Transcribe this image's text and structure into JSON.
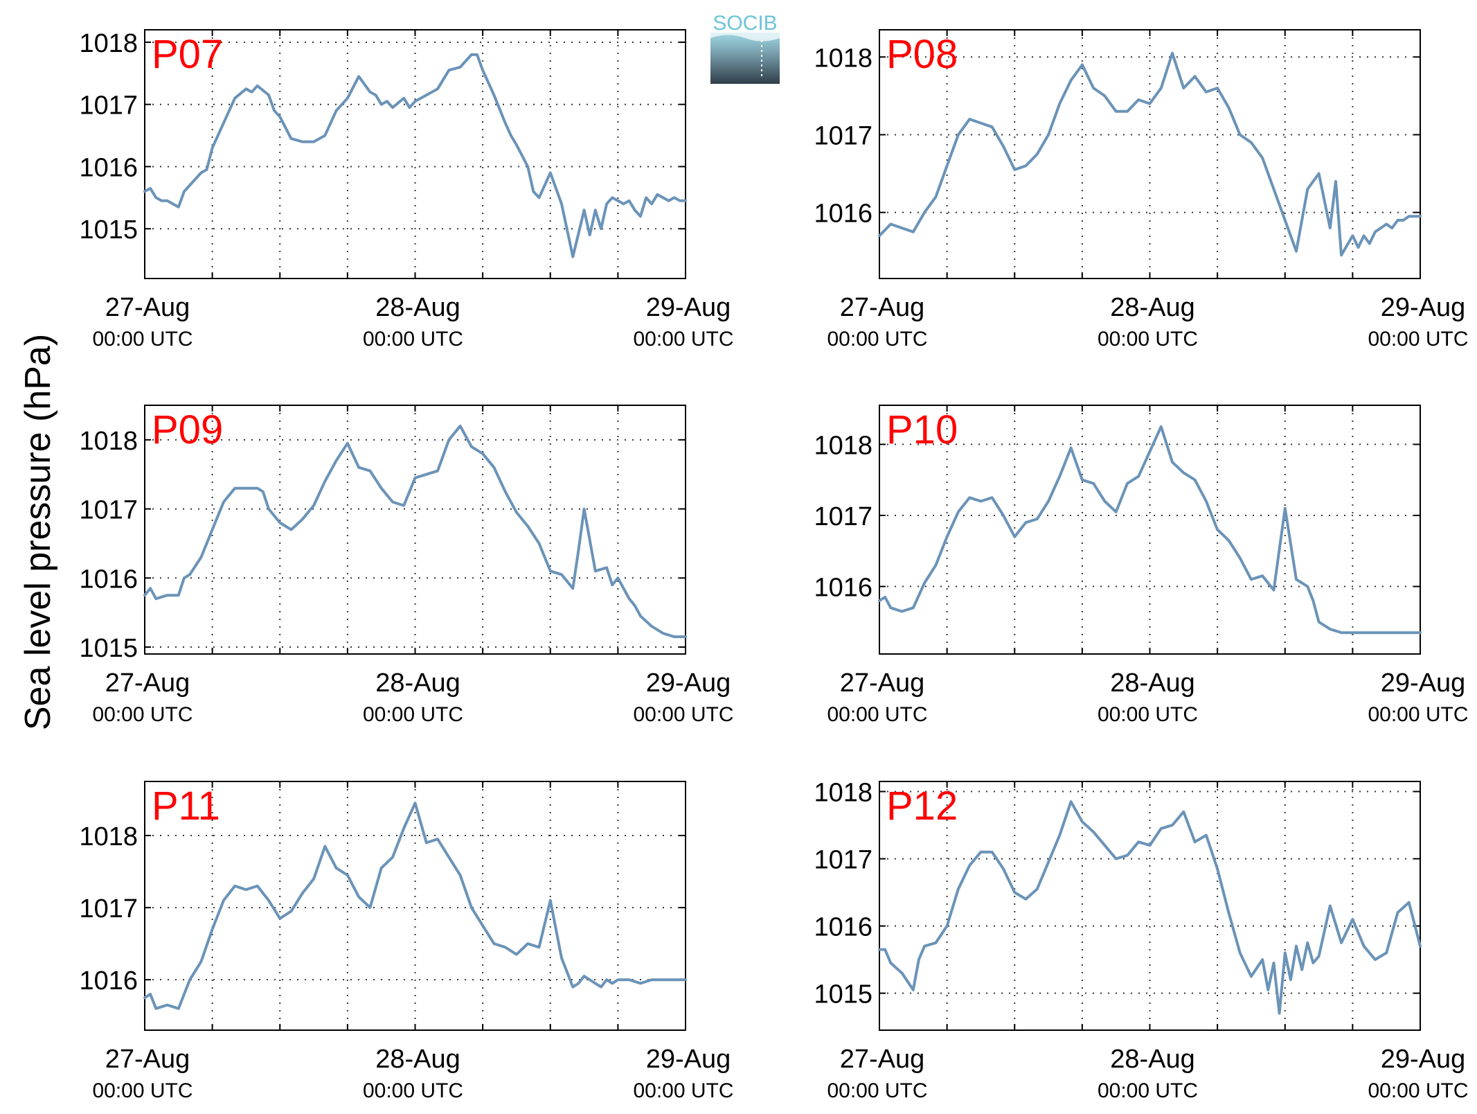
{
  "figure": {
    "ylabel": "Sea level pressure (hPa)",
    "logo_text": "SOCIB",
    "line_color": "#6b93b8",
    "station_label_color": "#ff0000",
    "axis_color": "#000000"
  },
  "chart_data": [
    {
      "type": "line",
      "station": "P07",
      "x_labels": [
        [
          "27-Aug",
          "00:00 UTC"
        ],
        [
          "28-Aug",
          "00:00 UTC"
        ],
        [
          "29-Aug",
          "00:00 UTC"
        ]
      ],
      "xlim": [
        0,
        48
      ],
      "ylim": [
        1014.2,
        1018.2
      ],
      "yticks": [
        1015,
        1016,
        1017,
        1018
      ],
      "grid": true,
      "series": [
        {
          "x": [
            0,
            0.5,
            1,
            1.5,
            2,
            3,
            3.5,
            4,
            5,
            5.5,
            6,
            7,
            8,
            9,
            9.5,
            10,
            11,
            11.5,
            12,
            13,
            14,
            15,
            15.5,
            16,
            17,
            18,
            19,
            20,
            20.5,
            21,
            21.5,
            22,
            23,
            23.5,
            24,
            25,
            26,
            27,
            28,
            29,
            29.5,
            30,
            31,
            32,
            32.5,
            33,
            34,
            34.5,
            35,
            36,
            37,
            38,
            39,
            39.5,
            40,
            40.5,
            41,
            41.5,
            42,
            42.5,
            43,
            43.5,
            44,
            44.5,
            45,
            45.5,
            46,
            46.5,
            47,
            47.5,
            48
          ],
          "values": [
            1015.6,
            1015.65,
            1015.5,
            1015.45,
            1015.45,
            1015.35,
            1015.6,
            1015.7,
            1015.9,
            1015.95,
            1016.3,
            1016.7,
            1017.1,
            1017.25,
            1017.2,
            1017.3,
            1017.15,
            1016.9,
            1016.8,
            1016.45,
            1016.4,
            1016.4,
            1016.45,
            1016.5,
            1016.9,
            1017.1,
            1017.45,
            1017.2,
            1017.15,
            1017.0,
            1017.05,
            1016.95,
            1017.1,
            1016.95,
            1017.05,
            1017.15,
            1017.25,
            1017.55,
            1017.6,
            1017.8,
            1017.8,
            1017.55,
            1017.15,
            1016.7,
            1016.5,
            1016.35,
            1016.0,
            1015.6,
            1015.5,
            1015.9,
            1015.4,
            1014.55,
            1015.3,
            1014.9,
            1015.3,
            1015.0,
            1015.4,
            1015.5,
            1015.45,
            1015.4,
            1015.45,
            1015.3,
            1015.2,
            1015.5,
            1015.4,
            1015.55,
            1015.5,
            1015.45,
            1015.5,
            1015.45,
            1015.45
          ]
        }
      ]
    },
    {
      "type": "line",
      "station": "P08",
      "x_labels": [
        [
          "27-Aug",
          "00:00 UTC"
        ],
        [
          "28-Aug",
          "00:00 UTC"
        ],
        [
          "29-Aug",
          "00:00 UTC"
        ]
      ],
      "xlim": [
        0,
        48
      ],
      "ylim": [
        1015.15,
        1018.35
      ],
      "yticks": [
        1016,
        1017,
        1018
      ],
      "grid": true,
      "series": [
        {
          "x": [
            0,
            1,
            2,
            3,
            4,
            5,
            6,
            7,
            8,
            9,
            10,
            11,
            12,
            13,
            14,
            15,
            16,
            17,
            18,
            19,
            20,
            21,
            22,
            23,
            24,
            25,
            26,
            27,
            28,
            29,
            30,
            31,
            32,
            33,
            34,
            35,
            36,
            37,
            38,
            39,
            40,
            40.5,
            41,
            42,
            42.5,
            43,
            43.5,
            44,
            44.5,
            45,
            45.5,
            46,
            46.5,
            47,
            48
          ],
          "values": [
            1015.7,
            1015.85,
            1015.8,
            1015.75,
            1016.0,
            1016.2,
            1016.6,
            1017.0,
            1017.2,
            1017.15,
            1017.1,
            1016.85,
            1016.55,
            1016.6,
            1016.75,
            1017.0,
            1017.4,
            1017.7,
            1017.9,
            1017.6,
            1017.5,
            1017.3,
            1017.3,
            1017.45,
            1017.4,
            1017.6,
            1018.05,
            1017.6,
            1017.75,
            1017.55,
            1017.6,
            1017.35,
            1017.0,
            1016.9,
            1016.7,
            1016.3,
            1015.9,
            1015.5,
            1016.3,
            1016.5,
            1015.8,
            1016.4,
            1015.45,
            1015.7,
            1015.55,
            1015.7,
            1015.6,
            1015.75,
            1015.8,
            1015.85,
            1015.8,
            1015.9,
            1015.9,
            1015.95,
            1015.95
          ]
        }
      ]
    },
    {
      "type": "line",
      "station": "P09",
      "x_labels": [
        [
          "27-Aug",
          "00:00 UTC"
        ],
        [
          "28-Aug",
          "00:00 UTC"
        ],
        [
          "29-Aug",
          "00:00 UTC"
        ]
      ],
      "xlim": [
        0,
        48
      ],
      "ylim": [
        1014.9,
        1018.5
      ],
      "yticks": [
        1015,
        1016,
        1017,
        1018
      ],
      "grid": true,
      "series": [
        {
          "x": [
            0,
            0.5,
            1,
            2,
            3,
            3.5,
            4,
            5,
            6,
            7,
            8,
            9,
            10,
            10.5,
            11,
            12,
            13,
            14,
            15,
            16,
            17,
            18,
            19,
            20,
            21,
            22,
            23,
            24,
            25,
            26,
            27,
            28,
            29,
            30,
            31,
            32,
            33,
            34,
            35,
            36,
            37,
            38,
            38.5,
            39,
            40,
            41,
            41.5,
            42,
            42.5,
            43,
            43.5,
            44,
            45,
            46,
            47,
            48
          ],
          "values": [
            1015.75,
            1015.85,
            1015.7,
            1015.75,
            1015.75,
            1016.0,
            1016.05,
            1016.3,
            1016.7,
            1017.1,
            1017.3,
            1017.3,
            1017.3,
            1017.25,
            1017.0,
            1016.8,
            1016.7,
            1016.85,
            1017.05,
            1017.4,
            1017.7,
            1017.95,
            1017.6,
            1017.55,
            1017.3,
            1017.1,
            1017.05,
            1017.45,
            1017.5,
            1017.55,
            1018.0,
            1018.2,
            1017.9,
            1017.8,
            1017.6,
            1017.25,
            1016.95,
            1016.75,
            1016.5,
            1016.1,
            1016.05,
            1015.85,
            1016.4,
            1017.0,
            1016.1,
            1016.15,
            1015.9,
            1016.0,
            1015.85,
            1015.7,
            1015.6,
            1015.45,
            1015.3,
            1015.2,
            1015.15,
            1015.15
          ]
        }
      ]
    },
    {
      "type": "line",
      "station": "P10",
      "x_labels": [
        [
          "27-Aug",
          "00:00 UTC"
        ],
        [
          "28-Aug",
          "00:00 UTC"
        ],
        [
          "29-Aug",
          "00:00 UTC"
        ]
      ],
      "xlim": [
        0,
        48
      ],
      "ylim": [
        1015.05,
        1018.55
      ],
      "yticks": [
        1016,
        1017,
        1018
      ],
      "grid": true,
      "series": [
        {
          "x": [
            0,
            0.5,
            1,
            2,
            3,
            4,
            5,
            6,
            7,
            8,
            9,
            10,
            11,
            12,
            13,
            14,
            15,
            16,
            17,
            18,
            19,
            20,
            21,
            22,
            23,
            24,
            25,
            26,
            27,
            28,
            29,
            30,
            31,
            32,
            33,
            34,
            35,
            36,
            37,
            38,
            38.5,
            39,
            40,
            41,
            41.5,
            42,
            43,
            44,
            45,
            46,
            47,
            48
          ],
          "values": [
            1015.8,
            1015.85,
            1015.7,
            1015.65,
            1015.7,
            1016.05,
            1016.3,
            1016.7,
            1017.05,
            1017.25,
            1017.2,
            1017.25,
            1017.0,
            1016.7,
            1016.9,
            1016.95,
            1017.2,
            1017.55,
            1017.95,
            1017.5,
            1017.45,
            1017.2,
            1017.05,
            1017.45,
            1017.55,
            1017.9,
            1018.25,
            1017.75,
            1017.6,
            1017.5,
            1017.2,
            1016.8,
            1016.65,
            1016.4,
            1016.1,
            1016.15,
            1015.95,
            1017.1,
            1016.1,
            1016.0,
            1015.8,
            1015.5,
            1015.4,
            1015.35,
            1015.35,
            1015.35,
            1015.35,
            1015.35,
            1015.35,
            1015.35,
            1015.35,
            1015.35
          ]
        }
      ]
    },
    {
      "type": "line",
      "station": "P11",
      "x_labels": [
        [
          "27-Aug",
          "00:00 UTC"
        ],
        [
          "28-Aug",
          "00:00 UTC"
        ],
        [
          "29-Aug",
          "00:00 UTC"
        ]
      ],
      "xlim": [
        0,
        48
      ],
      "ylim": [
        1015.3,
        1018.75
      ],
      "yticks": [
        1016,
        1017,
        1018
      ],
      "grid": true,
      "series": [
        {
          "x": [
            0,
            0.5,
            1,
            2,
            3,
            4,
            5,
            6,
            7,
            8,
            9,
            10,
            11,
            12,
            13,
            14,
            15,
            16,
            17,
            18,
            19,
            20,
            21,
            22,
            23,
            24,
            25,
            26,
            27,
            28,
            29,
            30,
            31,
            32,
            33,
            34,
            35,
            36,
            37,
            38,
            38.5,
            39,
            40,
            40.5,
            41,
            41.5,
            42,
            43,
            44,
            45,
            46,
            47,
            48
          ],
          "values": [
            1015.75,
            1015.8,
            1015.6,
            1015.65,
            1015.6,
            1016.0,
            1016.25,
            1016.7,
            1017.1,
            1017.3,
            1017.25,
            1017.3,
            1017.1,
            1016.85,
            1016.95,
            1017.2,
            1017.4,
            1017.85,
            1017.55,
            1017.45,
            1017.15,
            1017.0,
            1017.55,
            1017.7,
            1018.1,
            1018.45,
            1017.9,
            1017.95,
            1017.7,
            1017.45,
            1017.0,
            1016.75,
            1016.5,
            1016.45,
            1016.35,
            1016.5,
            1016.45,
            1017.1,
            1016.3,
            1015.9,
            1015.95,
            1016.05,
            1015.95,
            1015.9,
            1016.0,
            1015.95,
            1016.0,
            1016.0,
            1015.95,
            1016.0,
            1016.0,
            1016.0,
            1016.0
          ]
        }
      ]
    },
    {
      "type": "line",
      "station": "P12",
      "x_labels": [
        [
          "27-Aug",
          "00:00 UTC"
        ],
        [
          "28-Aug",
          "00:00 UTC"
        ],
        [
          "29-Aug",
          "00:00 UTC"
        ]
      ],
      "xlim": [
        0,
        48
      ],
      "ylim": [
        1014.45,
        1018.15
      ],
      "yticks": [
        1015,
        1016,
        1017,
        1018
      ],
      "grid": true,
      "series": [
        {
          "x": [
            0,
            0.5,
            1,
            2,
            3,
            3.5,
            4,
            5,
            6,
            7,
            8,
            9,
            10,
            11,
            12,
            13,
            14,
            15,
            16,
            17,
            18,
            19,
            20,
            21,
            22,
            23,
            24,
            25,
            26,
            27,
            28,
            29,
            30,
            31,
            32,
            33,
            34,
            34.5,
            35,
            35.5,
            36,
            36.5,
            37,
            37.5,
            38,
            38.5,
            39,
            40,
            41,
            42,
            43,
            44,
            45,
            46,
            47,
            48
          ],
          "values": [
            1015.65,
            1015.65,
            1015.45,
            1015.3,
            1015.05,
            1015.5,
            1015.7,
            1015.75,
            1016.0,
            1016.55,
            1016.9,
            1017.1,
            1017.1,
            1016.85,
            1016.5,
            1016.4,
            1016.55,
            1016.95,
            1017.35,
            1017.85,
            1017.55,
            1017.4,
            1017.2,
            1017.0,
            1017.05,
            1017.25,
            1017.2,
            1017.45,
            1017.5,
            1017.7,
            1017.25,
            1017.35,
            1016.85,
            1016.2,
            1015.6,
            1015.25,
            1015.5,
            1015.05,
            1015.45,
            1014.7,
            1015.6,
            1015.2,
            1015.7,
            1015.35,
            1015.75,
            1015.45,
            1015.55,
            1016.3,
            1015.75,
            1016.1,
            1015.7,
            1015.5,
            1015.6,
            1016.2,
            1016.35,
            1015.7
          ]
        }
      ]
    }
  ]
}
